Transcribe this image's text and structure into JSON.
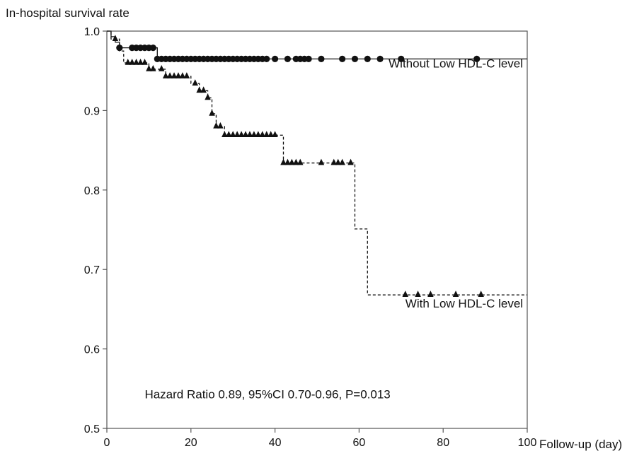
{
  "chart_data": {
    "type": "line",
    "title": "",
    "ylabel": "In-hospital survival rate",
    "xlabel": "Follow-up (day)",
    "xlim": [
      0,
      100
    ],
    "ylim": [
      0.5,
      1.0
    ],
    "x_ticks": [
      0,
      20,
      40,
      60,
      80,
      100
    ],
    "y_ticks": [
      0.5,
      0.6,
      0.7,
      0.8,
      0.9,
      1.0
    ],
    "y_tick_labels": [
      "0.5",
      "0.6",
      "0.7",
      "0.8",
      "0.9",
      "1.0"
    ],
    "grid": false,
    "series": [
      {
        "name": "Without Low HDL-C level",
        "line_style": "solid",
        "censor_marker": "circle",
        "steps": [
          [
            0,
            1.0
          ],
          [
            1,
            0.993
          ],
          [
            2,
            0.986
          ],
          [
            3,
            0.979
          ],
          [
            12,
            0.965
          ],
          [
            100,
            0.965
          ]
        ],
        "censored_x": [
          3,
          6,
          7,
          8,
          9,
          10,
          11,
          12,
          13,
          14,
          15,
          16,
          17,
          18,
          19,
          20,
          21,
          22,
          23,
          24,
          25,
          26,
          27,
          28,
          29,
          30,
          31,
          32,
          33,
          34,
          35,
          36,
          37,
          38,
          40,
          43,
          45,
          46,
          47,
          48,
          51,
          56,
          59,
          62,
          65,
          70,
          88
        ]
      },
      {
        "name": "With Low HDL-C level",
        "line_style": "dashed",
        "censor_marker": "triangle",
        "steps": [
          [
            0,
            1.0
          ],
          [
            1,
            0.99
          ],
          [
            3,
            0.975
          ],
          [
            4,
            0.96
          ],
          [
            10,
            0.952
          ],
          [
            14,
            0.943
          ],
          [
            20,
            0.934
          ],
          [
            22,
            0.925
          ],
          [
            24,
            0.916
          ],
          [
            25,
            0.896
          ],
          [
            26,
            0.88
          ],
          [
            28,
            0.869
          ],
          [
            42,
            0.834
          ],
          [
            59,
            0.751
          ],
          [
            62,
            0.668
          ],
          [
            100,
            0.668
          ]
        ],
        "censored_x": [
          2,
          5,
          6,
          7,
          8,
          9,
          10,
          11,
          13,
          14,
          15,
          16,
          17,
          18,
          19,
          21,
          22,
          23,
          24,
          25,
          26,
          27,
          28,
          29,
          30,
          31,
          32,
          33,
          34,
          35,
          36,
          37,
          38,
          39,
          40,
          42,
          43,
          44,
          45,
          46,
          51,
          54,
          55,
          56,
          58,
          71,
          74,
          77,
          83,
          89
        ]
      }
    ],
    "annotations": [
      {
        "text": "Without Low HDL-C level",
        "x": 99,
        "y": 0.954,
        "anchor": "end"
      },
      {
        "text": "With Low HDL-C level",
        "x": 99,
        "y": 0.652,
        "anchor": "end"
      },
      {
        "text": "Hazard Ratio 0.89, 95%CI 0.70-0.96, P=0.013",
        "x": 9,
        "y": 0.538,
        "anchor": "start"
      }
    ]
  }
}
